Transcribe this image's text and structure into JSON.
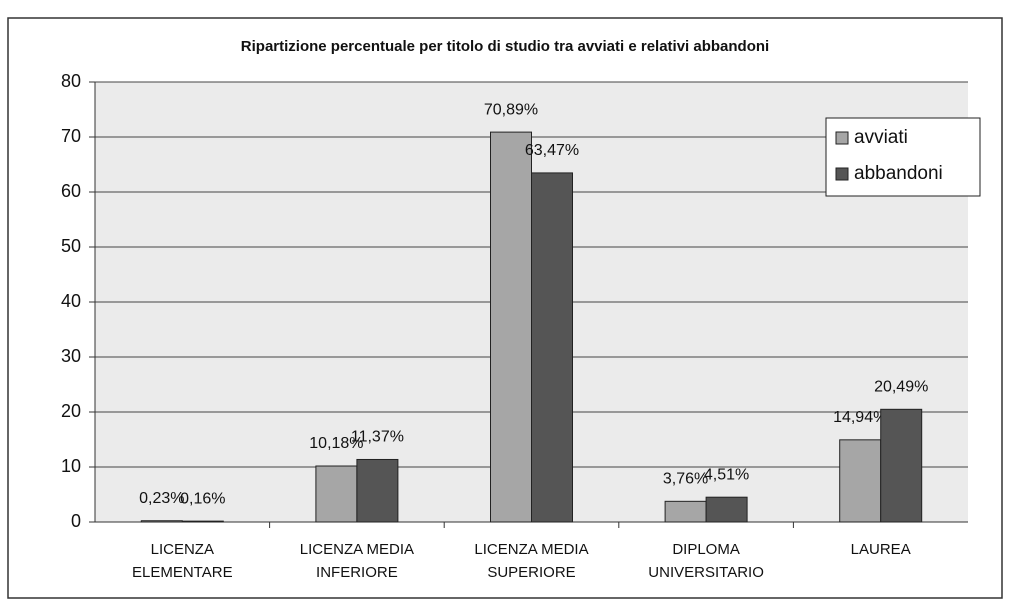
{
  "chart_data": {
    "type": "bar",
    "title": "Ripartizione percentuale per titolo di studio tra avviati e relativi abbandoni",
    "categories": [
      "LICENZA\nELEMENTARE",
      "LICENZA MEDIA\nINFERIORE",
      "LICENZA MEDIA\nSUPERIORE",
      "DIPLOMA\nUNIVERSITARIO",
      "LAUREA"
    ],
    "series": [
      {
        "name": "avviati",
        "color": "#a6a6a6",
        "values": [
          0.23,
          10.18,
          70.89,
          3.76,
          14.94
        ],
        "value_labels": [
          "0,23%",
          "10,18%",
          "70,89%",
          "3,76%",
          "14,94%"
        ]
      },
      {
        "name": "abbandoni",
        "color": "#555555",
        "values": [
          0.16,
          11.37,
          63.47,
          4.51,
          20.49
        ],
        "value_labels": [
          "0,16%",
          "11,37%",
          "63,47%",
          "4,51%",
          "20,49%"
        ]
      }
    ],
    "ylim": [
      0,
      80
    ],
    "yticks": [
      0,
      10,
      20,
      30,
      40,
      50,
      60,
      70,
      80
    ],
    "grid": true,
    "legend": "top-right"
  }
}
